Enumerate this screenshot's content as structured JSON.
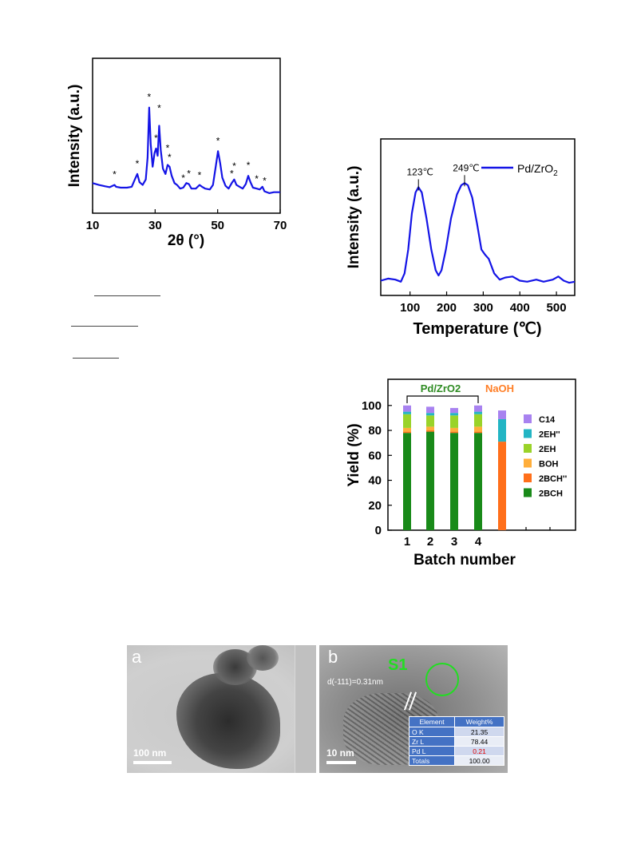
{
  "chart_data": [
    {
      "type": "line",
      "xlabel": "2θ (°)",
      "ylabel": "Intensity (a.u.)",
      "xlim": [
        10,
        70
      ],
      "xticks": [
        10,
        30,
        50,
        70
      ],
      "line_color": "#1414e6",
      "marker_label": "*",
      "series": [
        {
          "values": [
            [
              10,
              0.12
            ],
            [
              12,
              0.1
            ],
            [
              14,
              0.085
            ],
            [
              15.5,
              0.075
            ],
            [
              17,
              0.1
            ],
            [
              17.5,
              0.08
            ],
            [
              19,
              0.07
            ],
            [
              21,
              0.07
            ],
            [
              22.5,
              0.08
            ],
            [
              23.5,
              0.16
            ],
            [
              24.3,
              0.22
            ],
            [
              25,
              0.13
            ],
            [
              26,
              0.1
            ],
            [
              27,
              0.16
            ],
            [
              27.6,
              0.4
            ],
            [
              28.1,
              0.95
            ],
            [
              28.6,
              0.55
            ],
            [
              29.2,
              0.3
            ],
            [
              29.8,
              0.45
            ],
            [
              30.3,
              0.5
            ],
            [
              30.8,
              0.42
            ],
            [
              31.3,
              0.75
            ],
            [
              31.8,
              0.48
            ],
            [
              32.5,
              0.28
            ],
            [
              33.3,
              0.22
            ],
            [
              34,
              0.32
            ],
            [
              34.6,
              0.3
            ],
            [
              35.3,
              0.2
            ],
            [
              36.2,
              0.12
            ],
            [
              37,
              0.1
            ],
            [
              38,
              0.06
            ],
            [
              39,
              0.07
            ],
            [
              40,
              0.12
            ],
            [
              40.8,
              0.11
            ],
            [
              41.6,
              0.06
            ],
            [
              43,
              0.06
            ],
            [
              44.2,
              0.1
            ],
            [
              45,
              0.08
            ],
            [
              46,
              0.06
            ],
            [
              47.5,
              0.05
            ],
            [
              48.5,
              0.1
            ],
            [
              49.3,
              0.28
            ],
            [
              50.1,
              0.47
            ],
            [
              50.8,
              0.34
            ],
            [
              51.5,
              0.18
            ],
            [
              52.5,
              0.09
            ],
            [
              53.5,
              0.06
            ],
            [
              54.5,
              0.12
            ],
            [
              55.3,
              0.16
            ],
            [
              56,
              0.1
            ],
            [
              57,
              0.08
            ],
            [
              58,
              0.06
            ],
            [
              59,
              0.11
            ],
            [
              59.8,
              0.2
            ],
            [
              60.5,
              0.13
            ],
            [
              61.3,
              0.07
            ],
            [
              62.5,
              0.06
            ],
            [
              63.5,
              0.05
            ],
            [
              64.3,
              0.08
            ],
            [
              65,
              0.03
            ],
            [
              66.5,
              0.01
            ],
            [
              68,
              0.02
            ],
            [
              70,
              0.02
            ]
          ]
        }
      ],
      "markers": [
        {
          "x": 17,
          "y": 0.18
        },
        {
          "x": 24.3,
          "y": 0.3
        },
        {
          "x": 28.1,
          "y": 1.03
        },
        {
          "x": 31.3,
          "y": 0.91
        },
        {
          "x": 30.3,
          "y": 0.58
        },
        {
          "x": 34,
          "y": 0.47
        },
        {
          "x": 34.6,
          "y": 0.37
        },
        {
          "x": 39,
          "y": 0.14
        },
        {
          "x": 40.8,
          "y": 0.19
        },
        {
          "x": 44.2,
          "y": 0.17
        },
        {
          "x": 50.1,
          "y": 0.55
        },
        {
          "x": 54.5,
          "y": 0.19
        },
        {
          "x": 55.3,
          "y": 0.27
        },
        {
          "x": 59.8,
          "y": 0.28
        },
        {
          "x": 62.5,
          "y": 0.13
        },
        {
          "x": 65,
          "y": 0.11
        }
      ]
    },
    {
      "type": "line",
      "xlabel": "Temperature (℃)",
      "ylabel": "Intensity (a.u.)",
      "xlim": [
        20,
        550
      ],
      "xticks": [
        100,
        200,
        300,
        400,
        500
      ],
      "line_color": "#1414e6",
      "series": [
        {
          "name": "Pd/ZrO2",
          "values": [
            [
              20,
              0.05
            ],
            [
              40,
              0.07
            ],
            [
              60,
              0.06
            ],
            [
              75,
              0.04
            ],
            [
              85,
              0.12
            ],
            [
              95,
              0.35
            ],
            [
              105,
              0.7
            ],
            [
              115,
              0.9
            ],
            [
              123,
              0.95
            ],
            [
              132,
              0.9
            ],
            [
              145,
              0.65
            ],
            [
              158,
              0.35
            ],
            [
              170,
              0.15
            ],
            [
              178,
              0.1
            ],
            [
              186,
              0.15
            ],
            [
              198,
              0.35
            ],
            [
              212,
              0.65
            ],
            [
              228,
              0.88
            ],
            [
              240,
              0.97
            ],
            [
              249,
              0.99
            ],
            [
              258,
              0.97
            ],
            [
              270,
              0.85
            ],
            [
              283,
              0.6
            ],
            [
              295,
              0.35
            ],
            [
              305,
              0.3
            ],
            [
              315,
              0.26
            ],
            [
              330,
              0.12
            ],
            [
              345,
              0.06
            ],
            [
              360,
              0.08
            ],
            [
              380,
              0.09
            ],
            [
              400,
              0.05
            ],
            [
              420,
              0.04
            ],
            [
              445,
              0.06
            ],
            [
              465,
              0.04
            ],
            [
              490,
              0.06
            ],
            [
              505,
              0.09
            ],
            [
              520,
              0.05
            ],
            [
              535,
              0.03
            ],
            [
              550,
              0.04
            ]
          ]
        }
      ],
      "annotations": [
        "123℃",
        "249℃"
      ],
      "legend_position": "top-right"
    },
    {
      "type": "bar",
      "stacked": true,
      "xlabel": "Batch number",
      "ylabel": "Yield (%)",
      "ylim": [
        0,
        110
      ],
      "yticks": [
        0,
        20,
        40,
        60,
        80,
        100
      ],
      "xticks": [
        "1",
        "2",
        "3",
        "4"
      ],
      "categories": [
        "1",
        "2",
        "3",
        "4",
        "NaOH"
      ],
      "group_labels": [
        {
          "text": "Pd/ZrO2",
          "color": "#2e8b22"
        },
        {
          "text": "NaOH",
          "color": "#ff7f27"
        }
      ],
      "legend_position": "right",
      "series": [
        {
          "name": "2BCH",
          "color": "#198a19",
          "values": [
            78,
            79,
            78,
            78,
            0
          ]
        },
        {
          "name": "2BCH''",
          "color": "#ff6f1a",
          "values": [
            1,
            1,
            1,
            1,
            71
          ]
        },
        {
          "name": "BOH",
          "color": "#ffae3b",
          "values": [
            3,
            3,
            3,
            4,
            0
          ]
        },
        {
          "name": "2EH",
          "color": "#9ad329",
          "values": [
            11,
            9,
            10,
            10,
            0
          ]
        },
        {
          "name": "2EH''",
          "color": "#23b5c4",
          "values": [
            2,
            2,
            2,
            2,
            18
          ]
        },
        {
          "name": "C14",
          "color": "#a882f0",
          "values": [
            5,
            5,
            4,
            5,
            7
          ]
        }
      ]
    }
  ],
  "tem": {
    "panel_a": {
      "letter": "a",
      "scale_bar": "100 nm"
    },
    "panel_b": {
      "letter": "b",
      "scale_bar": "10 nm",
      "region_label": "S1",
      "lattice_label": "d(-111)=0.31nm",
      "table": {
        "headers": [
          "Element",
          "Weight%"
        ],
        "rows": [
          [
            "O K",
            "21.35"
          ],
          [
            "Zr L",
            "78.44"
          ],
          [
            "Pd L",
            "0.21"
          ],
          [
            "Totals",
            "100.00"
          ]
        ]
      }
    }
  }
}
